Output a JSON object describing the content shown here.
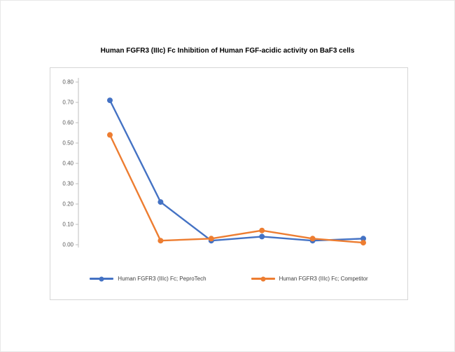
{
  "chart_data": {
    "type": "line",
    "title": "Human FGFR3 (IIIc) Fc Inhibition of Human FGF-acidic activity on BaF3 cells",
    "x_tick_labels_visible": false,
    "series": [
      {
        "name": "Human FGFR3 (IIIc) Fc; PeproTech",
        "color": "#4472c4",
        "marker": "circle",
        "values": [
          0.71,
          0.21,
          0.02,
          0.04,
          0.02,
          0.03
        ]
      },
      {
        "name": "Human FGFR3 (IIIc) Fc; Competitor",
        "color": "#ed7d31",
        "marker": "circle",
        "values": [
          0.54,
          0.02,
          0.03,
          0.07,
          0.03,
          0.01
        ]
      }
    ],
    "ylim": [
      0,
      0.8
    ],
    "ytick_step": 0.1,
    "ytick_labels": [
      "0.00",
      "0.10",
      "0.20",
      "0.30",
      "0.40",
      "0.50",
      "0.60",
      "0.70",
      "0.80"
    ],
    "grid": false,
    "legend_position": "bottom-inside",
    "axis_color": "#bfbfbf",
    "tick_label_color": "#595959"
  }
}
